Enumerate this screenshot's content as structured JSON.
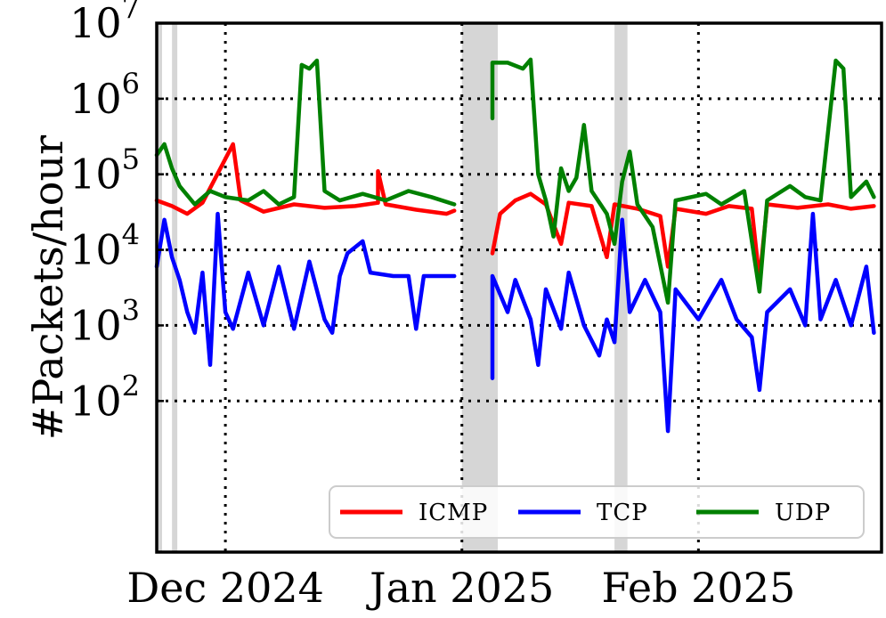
{
  "chart_data": {
    "type": "line",
    "title": "",
    "xlabel": "",
    "ylabel": "#Packets/hour",
    "yscale": "log",
    "ylim": [
      1,
      10000000
    ],
    "xlim": [
      "2024-11-22",
      "2025-02-24"
    ],
    "grid": true,
    "legend_position": "bottom-right",
    "x_ticks": [
      {
        "date": "2024-12-01",
        "label": "Dec 2024"
      },
      {
        "date": "2025-01-01",
        "label": "Jan 2025"
      },
      {
        "date": "2025-02-01",
        "label": "Feb 2025"
      }
    ],
    "y_ticks": [
      {
        "value": 100,
        "base": "10",
        "exp": "2"
      },
      {
        "value": 1000,
        "base": "10",
        "exp": "3"
      },
      {
        "value": 10000,
        "base": "10",
        "exp": "4"
      },
      {
        "value": 100000,
        "base": "10",
        "exp": "5"
      },
      {
        "value": 1000000,
        "base": "10",
        "exp": "6"
      },
      {
        "value": 10000000,
        "base": "10",
        "exp": "7"
      }
    ],
    "shaded_periods": [
      {
        "start": "2024-11-22",
        "end": "2024-11-22"
      },
      {
        "start": "2024-11-24",
        "end": "2024-11-24"
      },
      {
        "start": "2025-01-01",
        "end": "2025-01-05"
      },
      {
        "start": "2025-01-21",
        "end": "2025-01-22"
      }
    ],
    "series": [
      {
        "name": "ICMP",
        "color": "#ff0000",
        "points": [
          [
            "2024-11-22",
            45000
          ],
          [
            "2024-11-24",
            38000
          ],
          [
            "2024-11-26",
            30000
          ],
          [
            "2024-11-28",
            42000
          ],
          [
            "2024-12-02",
            250000
          ],
          [
            "2024-12-03",
            45000
          ],
          [
            "2024-12-06",
            32000
          ],
          [
            "2024-12-10",
            40000
          ],
          [
            "2024-12-14",
            36000
          ],
          [
            "2024-12-18",
            38000
          ],
          [
            "2024-12-21",
            42000
          ],
          [
            "2024-12-21",
            110000
          ],
          [
            "2024-12-22",
            40000
          ],
          [
            "2024-12-26",
            34000
          ],
          [
            "2024-12-30",
            30000
          ],
          [
            "2024-12-31",
            33000
          ],
          [
            null,
            null
          ],
          [
            "2025-01-05",
            9000
          ],
          [
            "2025-01-06",
            30000
          ],
          [
            "2025-01-08",
            45000
          ],
          [
            "2025-01-10",
            55000
          ],
          [
            "2025-01-12",
            40000
          ],
          [
            "2025-01-14",
            12000
          ],
          [
            "2025-01-15",
            42000
          ],
          [
            "2025-01-18",
            38000
          ],
          [
            "2025-01-20",
            8000
          ],
          [
            "2025-01-21",
            40000
          ],
          [
            "2025-01-24",
            35000
          ],
          [
            "2025-01-27",
            28000
          ],
          [
            "2025-01-28",
            6000
          ],
          [
            "2025-01-29",
            35000
          ],
          [
            "2025-02-02",
            30000
          ],
          [
            "2025-02-05",
            38000
          ],
          [
            "2025-02-08",
            35000
          ],
          [
            "2025-02-09",
            4000
          ],
          [
            "2025-02-10",
            40000
          ],
          [
            "2025-02-14",
            36000
          ],
          [
            "2025-02-18",
            40000
          ],
          [
            "2025-02-21",
            35000
          ],
          [
            "2025-02-24",
            38000
          ]
        ]
      },
      {
        "name": "TCP",
        "color": "#0000ff",
        "points": [
          [
            "2024-11-22",
            6000
          ],
          [
            "2024-11-23",
            25000
          ],
          [
            "2024-11-24",
            8000
          ],
          [
            "2024-11-25",
            4000
          ],
          [
            "2024-11-26",
            1500
          ],
          [
            "2024-11-27",
            800
          ],
          [
            "2024-11-28",
            5000
          ],
          [
            "2024-11-29",
            300
          ],
          [
            "2024-11-30",
            30000
          ],
          [
            "2024-12-01",
            1500
          ],
          [
            "2024-12-02",
            900
          ],
          [
            "2024-12-04",
            5000
          ],
          [
            "2024-12-06",
            1000
          ],
          [
            "2024-12-08",
            6000
          ],
          [
            "2024-12-10",
            900
          ],
          [
            "2024-12-12",
            7000
          ],
          [
            "2024-12-14",
            1200
          ],
          [
            "2024-12-15",
            800
          ],
          [
            "2024-12-16",
            4500
          ],
          [
            "2024-12-17",
            9000
          ],
          [
            "2024-12-19",
            13000
          ],
          [
            "2024-12-20",
            5000
          ],
          [
            "2024-12-23",
            4500
          ],
          [
            "2024-12-25",
            4500
          ],
          [
            "2024-12-26",
            900
          ],
          [
            "2024-12-27",
            4500
          ],
          [
            "2024-12-30",
            4500
          ],
          [
            "2024-12-31",
            4500
          ],
          [
            null,
            null
          ],
          [
            "2025-01-05",
            200
          ],
          [
            "2025-01-05",
            4500
          ],
          [
            "2025-01-07",
            1500
          ],
          [
            "2025-01-08",
            4000
          ],
          [
            "2025-01-10",
            1200
          ],
          [
            "2025-01-11",
            300
          ],
          [
            "2025-01-12",
            3000
          ],
          [
            "2025-01-14",
            900
          ],
          [
            "2025-01-15",
            5000
          ],
          [
            "2025-01-17",
            1000
          ],
          [
            "2025-01-19",
            400
          ],
          [
            "2025-01-20",
            1200
          ],
          [
            "2025-01-21",
            600
          ],
          [
            "2025-01-22",
            25000
          ],
          [
            "2025-01-23",
            1500
          ],
          [
            "2025-01-25",
            4000
          ],
          [
            "2025-01-27",
            1500
          ],
          [
            "2025-01-28",
            40
          ],
          [
            "2025-01-29",
            3000
          ],
          [
            "2025-02-01",
            1200
          ],
          [
            "2025-02-04",
            4000
          ],
          [
            "2025-02-06",
            1200
          ],
          [
            "2025-02-08",
            700
          ],
          [
            "2025-02-09",
            140
          ],
          [
            "2025-02-10",
            1500
          ],
          [
            "2025-02-13",
            3000
          ],
          [
            "2025-02-15",
            1000
          ],
          [
            "2025-02-16",
            30000
          ],
          [
            "2025-02-17",
            1200
          ],
          [
            "2025-02-19",
            4000
          ],
          [
            "2025-02-21",
            1000
          ],
          [
            "2025-02-23",
            6000
          ],
          [
            "2025-02-24",
            800
          ]
        ]
      },
      {
        "name": "UDP",
        "color": "#008000",
        "points": [
          [
            "2024-11-22",
            180000
          ],
          [
            "2024-11-23",
            250000
          ],
          [
            "2024-11-24",
            120000
          ],
          [
            "2024-11-25",
            70000
          ],
          [
            "2024-11-27",
            40000
          ],
          [
            "2024-11-29",
            60000
          ],
          [
            "2024-12-01",
            50000
          ],
          [
            "2024-12-04",
            45000
          ],
          [
            "2024-12-06",
            60000
          ],
          [
            "2024-12-08",
            40000
          ],
          [
            "2024-12-10",
            50000
          ],
          [
            "2024-12-11",
            2800000
          ],
          [
            "2024-12-12",
            2500000
          ],
          [
            "2024-12-13",
            3200000
          ],
          [
            "2024-12-14",
            60000
          ],
          [
            "2024-12-16",
            45000
          ],
          [
            "2024-12-19",
            55000
          ],
          [
            "2024-12-22",
            45000
          ],
          [
            "2024-12-25",
            60000
          ],
          [
            "2024-12-28",
            50000
          ],
          [
            "2024-12-31",
            40000
          ],
          [
            null,
            null
          ],
          [
            "2025-01-05",
            550000
          ],
          [
            "2025-01-05",
            3000000
          ],
          [
            "2025-01-07",
            3000000
          ],
          [
            "2025-01-09",
            2500000
          ],
          [
            "2025-01-10",
            3300000
          ],
          [
            "2025-01-11",
            100000
          ],
          [
            "2025-01-12",
            45000
          ],
          [
            "2025-01-13",
            15000
          ],
          [
            "2025-01-14",
            120000
          ],
          [
            "2025-01-15",
            60000
          ],
          [
            "2025-01-16",
            90000
          ],
          [
            "2025-01-17",
            450000
          ],
          [
            "2025-01-18",
            60000
          ],
          [
            "2025-01-20",
            30000
          ],
          [
            "2025-01-21",
            12000
          ],
          [
            "2025-01-22",
            80000
          ],
          [
            "2025-01-23",
            200000
          ],
          [
            "2025-01-24",
            40000
          ],
          [
            "2025-01-26",
            20000
          ],
          [
            "2025-01-28",
            2000
          ],
          [
            "2025-01-29",
            45000
          ],
          [
            "2025-02-02",
            55000
          ],
          [
            "2025-02-04",
            40000
          ],
          [
            "2025-02-07",
            60000
          ],
          [
            "2025-02-09",
            2800
          ],
          [
            "2025-02-10",
            45000
          ],
          [
            "2025-02-13",
            70000
          ],
          [
            "2025-02-15",
            50000
          ],
          [
            "2025-02-17",
            45000
          ],
          [
            "2025-02-19",
            3200000
          ],
          [
            "2025-02-20",
            2500000
          ],
          [
            "2025-02-21",
            50000
          ],
          [
            "2025-02-23",
            80000
          ],
          [
            "2025-02-24",
            50000
          ]
        ]
      }
    ]
  }
}
